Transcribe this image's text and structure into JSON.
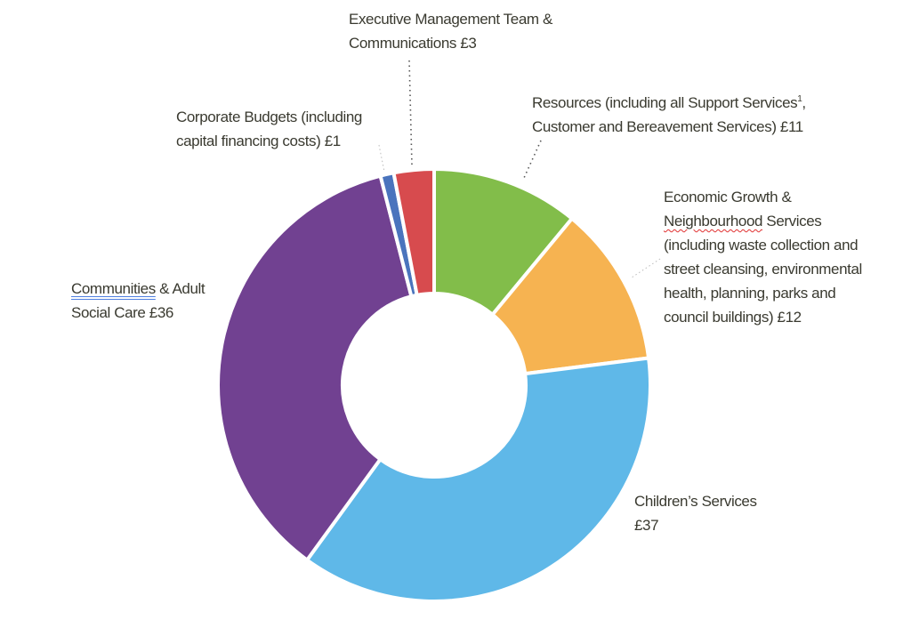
{
  "chart_data": {
    "type": "pie",
    "variant": "donut",
    "start": "12 o'clock, clockwise",
    "slices": [
      {
        "id": "resources",
        "value": 11,
        "color": "#82bd4a",
        "label_lines": [
          "Resources (including all Support Services",
          "Customer and Bereavement Services) £11"
        ],
        "superscript": "1",
        "superscript_suffix": ","
      },
      {
        "id": "economic",
        "value": 12,
        "color": "#f6b351",
        "label_lines": [
          "Economic Growth &",
          "Neighbourhood Services",
          "(including waste collection and",
          "street cleansing, environmental",
          "health, planning, parks and",
          "council buildings) £12"
        ]
      },
      {
        "id": "children",
        "value": 37,
        "color": "#5fb8e8",
        "label_lines": [
          "Children’s Services",
          "£37"
        ]
      },
      {
        "id": "communities",
        "value": 36,
        "color": "#714191",
        "label_lines": [
          "Communities & Adult",
          "Social Care £36"
        ]
      },
      {
        "id": "corporate",
        "value": 1,
        "color": "#4a74bd",
        "label_lines": [
          "Corporate Budgets (including",
          "capital financing costs) £1"
        ]
      },
      {
        "id": "executive",
        "value": 3,
        "color": "#d74b4e",
        "label_lines": [
          "Executive Management Team &",
          "Communications £3"
        ]
      }
    ]
  }
}
